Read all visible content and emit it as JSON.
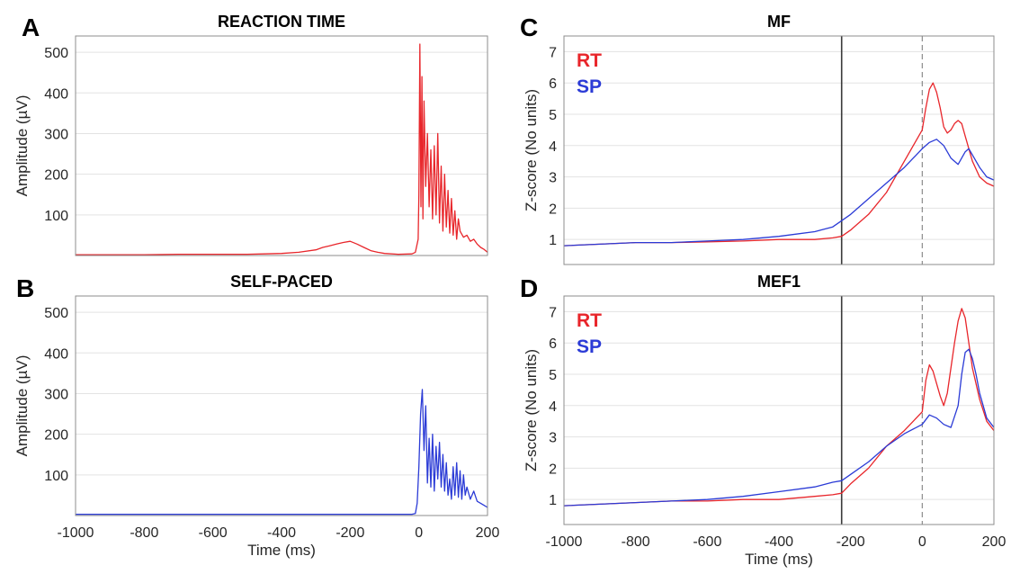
{
  "chart_data": [
    {
      "panel": "A",
      "type": "line",
      "title": "REACTION TIME",
      "xlabel": "",
      "ylabel": "Amplitude (µV)",
      "xlim": [
        -1000,
        200
      ],
      "ylim": [
        0,
        540
      ],
      "xticks": [],
      "yticks": [
        100,
        200,
        300,
        400,
        500
      ],
      "grid": true,
      "series": [
        {
          "color": "#e8262b",
          "x": [
            -1000,
            -900,
            -800,
            -700,
            -600,
            -500,
            -450,
            -400,
            -350,
            -300,
            -280,
            -260,
            -240,
            -220,
            -200,
            -180,
            -160,
            -140,
            -120,
            -100,
            -60,
            -20,
            -10,
            -2,
            0,
            3,
            6,
            9,
            12,
            15,
            20,
            25,
            30,
            35,
            40,
            45,
            50,
            55,
            60,
            65,
            70,
            75,
            80,
            85,
            90,
            95,
            100,
            105,
            110,
            115,
            120,
            130,
            140,
            150,
            160,
            170,
            180,
            190,
            200
          ],
          "y": [
            2,
            2,
            2,
            3,
            3,
            3,
            4,
            5,
            8,
            14,
            20,
            24,
            28,
            32,
            35,
            28,
            20,
            12,
            8,
            5,
            3,
            4,
            8,
            40,
            150,
            520,
            120,
            440,
            90,
            380,
            170,
            300,
            120,
            260,
            90,
            270,
            100,
            300,
            80,
            220,
            60,
            200,
            70,
            160,
            55,
            140,
            50,
            110,
            40,
            90,
            60,
            45,
            50,
            35,
            40,
            28,
            20,
            15,
            8
          ]
        }
      ]
    },
    {
      "panel": "B",
      "type": "line",
      "title": "SELF-PACED",
      "xlabel": "Time (ms)",
      "ylabel": "Amplitude (µV)",
      "xlim": [
        -1000,
        200
      ],
      "ylim": [
        0,
        540
      ],
      "xticks": [
        -1000,
        -800,
        -600,
        -400,
        -200,
        0,
        200
      ],
      "yticks": [
        100,
        200,
        300,
        400,
        500
      ],
      "grid": true,
      "series": [
        {
          "color": "#2b3bd6",
          "x": [
            -1000,
            -800,
            -600,
            -400,
            -200,
            -50,
            -20,
            -10,
            -5,
            0,
            5,
            10,
            15,
            20,
            25,
            30,
            35,
            40,
            45,
            50,
            55,
            60,
            65,
            70,
            75,
            80,
            85,
            90,
            95,
            100,
            105,
            110,
            115,
            120,
            125,
            130,
            135,
            140,
            150,
            160,
            170,
            180,
            190,
            200
          ],
          "y": [
            3,
            3,
            3,
            3,
            3,
            3,
            3,
            5,
            30,
            120,
            250,
            310,
            160,
            270,
            80,
            190,
            70,
            200,
            60,
            170,
            90,
            180,
            70,
            150,
            60,
            130,
            50,
            90,
            40,
            120,
            50,
            130,
            45,
            110,
            40,
            100,
            50,
            70,
            40,
            60,
            35,
            30,
            25,
            20
          ]
        }
      ]
    },
    {
      "panel": "C",
      "type": "line",
      "title": "MF",
      "xlabel": "",
      "ylabel": "Z-score (No units)",
      "xlim": [
        -1000,
        200
      ],
      "ylim": [
        0.2,
        7.5
      ],
      "xticks": [],
      "yticks": [
        1,
        2,
        3,
        4,
        5,
        6,
        7
      ],
      "grid": true,
      "vlines": [
        {
          "x": -225,
          "style": "solid"
        },
        {
          "x": 0,
          "style": "dashed"
        }
      ],
      "legend": [
        "RT",
        "SP"
      ],
      "series": [
        {
          "name": "RT",
          "color": "#e8262b",
          "x": [
            -1000,
            -900,
            -800,
            -700,
            -600,
            -500,
            -400,
            -300,
            -250,
            -225,
            -200,
            -150,
            -100,
            -50,
            0,
            10,
            20,
            30,
            40,
            50,
            60,
            70,
            80,
            90,
            100,
            110,
            120,
            140,
            160,
            180,
            200
          ],
          "y": [
            0.8,
            0.85,
            0.9,
            0.9,
            0.92,
            0.95,
            1.0,
            1.0,
            1.05,
            1.1,
            1.3,
            1.8,
            2.5,
            3.5,
            4.5,
            5.2,
            5.8,
            6.0,
            5.7,
            5.2,
            4.6,
            4.4,
            4.5,
            4.7,
            4.8,
            4.7,
            4.3,
            3.5,
            3.0,
            2.8,
            2.7
          ]
        },
        {
          "name": "SP",
          "color": "#2b3bd6",
          "x": [
            -1000,
            -900,
            -800,
            -700,
            -600,
            -500,
            -400,
            -300,
            -250,
            -225,
            -200,
            -150,
            -100,
            -50,
            0,
            20,
            40,
            60,
            80,
            100,
            120,
            130,
            140,
            160,
            180,
            200
          ],
          "y": [
            0.8,
            0.85,
            0.9,
            0.9,
            0.95,
            1.0,
            1.1,
            1.25,
            1.4,
            1.6,
            1.8,
            2.3,
            2.8,
            3.3,
            3.9,
            4.1,
            4.2,
            4.0,
            3.6,
            3.4,
            3.8,
            3.9,
            3.7,
            3.3,
            3.0,
            2.9
          ]
        }
      ]
    },
    {
      "panel": "D",
      "type": "line",
      "title": "MEF1",
      "xlabel": "Time (ms)",
      "ylabel": "Z-score (No units)",
      "xlim": [
        -1000,
        200
      ],
      "ylim": [
        0.2,
        7.5
      ],
      "xticks": [
        -1000,
        -800,
        -600,
        -400,
        -200,
        0,
        200
      ],
      "yticks": [
        1,
        2,
        3,
        4,
        5,
        6,
        7
      ],
      "grid": true,
      "vlines": [
        {
          "x": -225,
          "style": "solid"
        },
        {
          "x": 0,
          "style": "dashed"
        }
      ],
      "legend": [
        "RT",
        "SP"
      ],
      "series": [
        {
          "name": "RT",
          "color": "#e8262b",
          "x": [
            -1000,
            -900,
            -800,
            -700,
            -600,
            -500,
            -400,
            -300,
            -250,
            -225,
            -200,
            -150,
            -100,
            -50,
            0,
            10,
            20,
            30,
            40,
            50,
            60,
            70,
            80,
            90,
            100,
            110,
            120,
            130,
            140,
            160,
            180,
            200
          ],
          "y": [
            0.8,
            0.85,
            0.9,
            0.95,
            0.95,
            1.0,
            1.0,
            1.1,
            1.15,
            1.2,
            1.5,
            2.0,
            2.7,
            3.2,
            3.8,
            4.8,
            5.3,
            5.1,
            4.7,
            4.3,
            4.0,
            4.4,
            5.2,
            6.0,
            6.7,
            7.1,
            6.8,
            6.0,
            5.2,
            4.2,
            3.5,
            3.2
          ]
        },
        {
          "name": "SP",
          "color": "#2b3bd6",
          "x": [
            -1000,
            -900,
            -800,
            -700,
            -600,
            -500,
            -400,
            -300,
            -250,
            -225,
            -200,
            -150,
            -100,
            -50,
            0,
            20,
            40,
            60,
            80,
            100,
            110,
            120,
            130,
            140,
            150,
            160,
            180,
            200
          ],
          "y": [
            0.8,
            0.85,
            0.9,
            0.95,
            1.0,
            1.1,
            1.25,
            1.4,
            1.55,
            1.6,
            1.8,
            2.2,
            2.7,
            3.1,
            3.4,
            3.7,
            3.6,
            3.4,
            3.3,
            4.0,
            5.0,
            5.7,
            5.8,
            5.5,
            5.0,
            4.4,
            3.6,
            3.3
          ]
        }
      ]
    }
  ]
}
